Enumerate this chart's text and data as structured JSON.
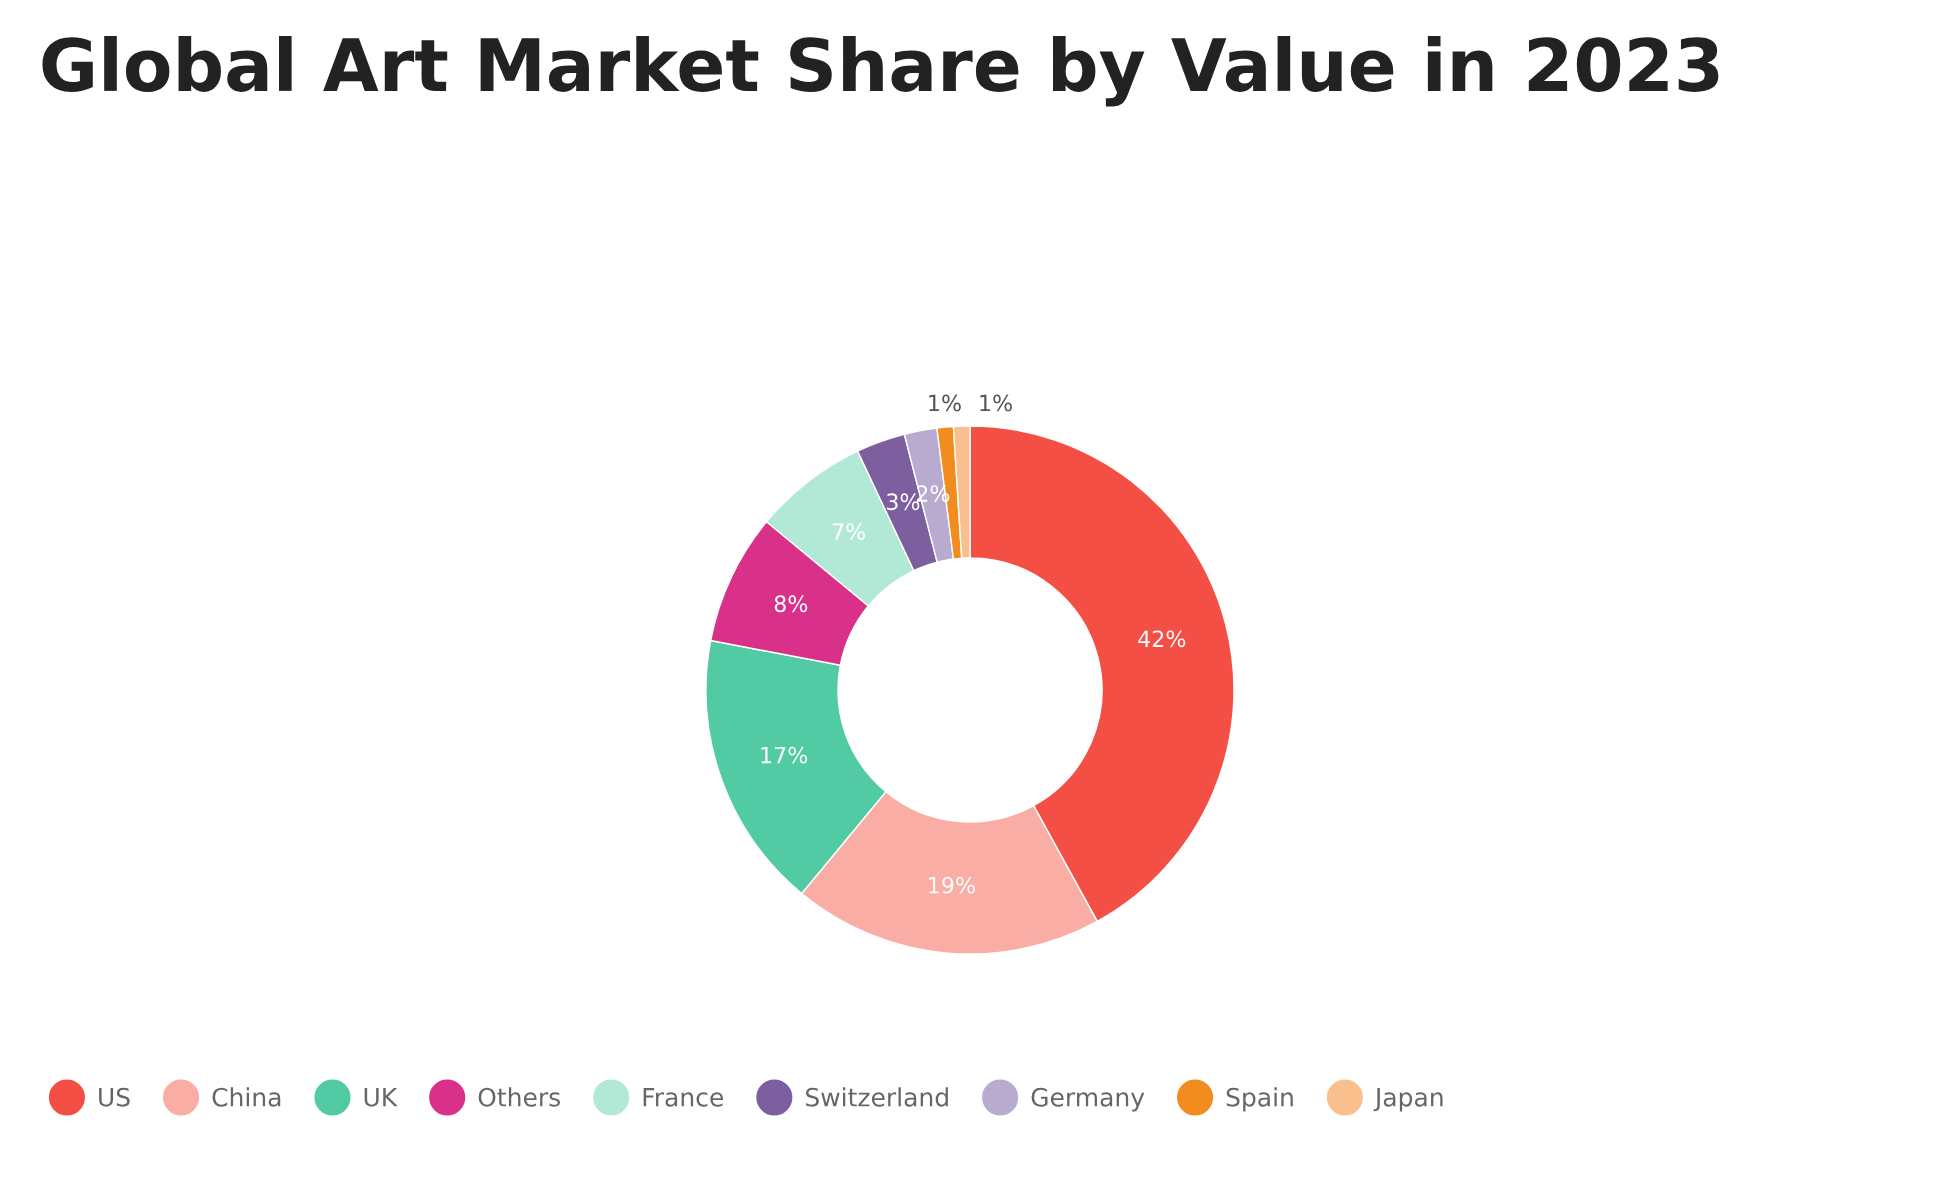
{
  "chart_data": {
    "type": "donut",
    "title": "Global Art Market Share by Value in 2023",
    "categories": [
      "US",
      "China",
      "UK",
      "Others",
      "France",
      "Switzerland",
      "Germany",
      "Spain",
      "Japan"
    ],
    "values": [
      42,
      19,
      17,
      8,
      7,
      3,
      2,
      1,
      1
    ],
    "colors": [
      "#f44f45",
      "#f9ada5",
      "#52cba4",
      "#d9308a",
      "#b2e8d6",
      "#7d5fa0",
      "#b9abcf",
      "#f28c1e",
      "#f9c08e"
    ],
    "value_labels": [
      "42%",
      "19%",
      "17%",
      "8%",
      "7%",
      "3%",
      "2%",
      "1%",
      "1%"
    ],
    "legend": "bottom left"
  }
}
